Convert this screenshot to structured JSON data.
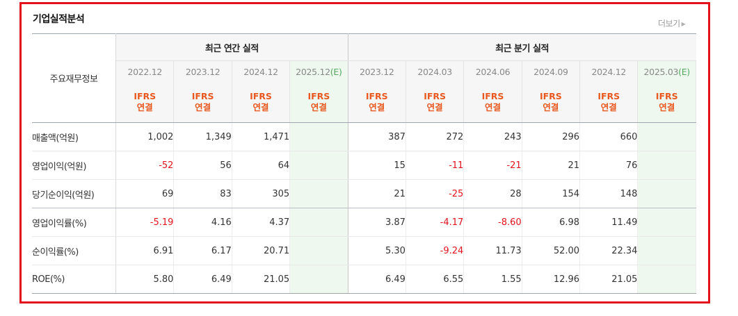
{
  "header": {
    "title": "기업실적분석",
    "more_label": "더보기"
  },
  "table": {
    "corner_label": "주요재무정보",
    "groups": [
      {
        "label": "최근 연간 실적"
      },
      {
        "label": "최근 분기 실적"
      }
    ],
    "periods": [
      {
        "label": "2022.12",
        "est": ""
      },
      {
        "label": "2023.12",
        "est": ""
      },
      {
        "label": "2024.12",
        "est": ""
      },
      {
        "label": "2025.12",
        "est": "(E)"
      },
      {
        "label": "2023.12",
        "est": ""
      },
      {
        "label": "2024.03",
        "est": ""
      },
      {
        "label": "2024.06",
        "est": ""
      },
      {
        "label": "2024.09",
        "est": ""
      },
      {
        "label": "2024.12",
        "est": ""
      },
      {
        "label": "2025.03",
        "est": "(E)"
      }
    ],
    "ifrs": {
      "line1": "IFRS",
      "line2": "연결"
    },
    "rows": [
      {
        "label": "매출액(억원)",
        "values": [
          "1,002",
          "1,349",
          "1,471",
          "",
          "387",
          "272",
          "243",
          "296",
          "660",
          ""
        ]
      },
      {
        "label": "영업이익(억원)",
        "values": [
          "-52",
          "56",
          "64",
          "",
          "15",
          "-11",
          "-21",
          "21",
          "76",
          ""
        ]
      },
      {
        "label": "당기순이익(억원)",
        "values": [
          "69",
          "83",
          "305",
          "",
          "21",
          "-25",
          "28",
          "154",
          "148",
          ""
        ]
      },
      {
        "label": "영업이익률(%)",
        "values": [
          "-5.19",
          "4.16",
          "4.37",
          "",
          "3.87",
          "-4.17",
          "-8.60",
          "6.98",
          "11.49",
          ""
        ]
      },
      {
        "label": "순이익률(%)",
        "values": [
          "6.91",
          "6.17",
          "20.71",
          "",
          "5.30",
          "-9.24",
          "11.73",
          "52.00",
          "22.34",
          ""
        ]
      },
      {
        "label": "ROE(%)",
        "values": [
          "5.80",
          "6.49",
          "21.05",
          "",
          "6.49",
          "6.55",
          "1.55",
          "12.96",
          "21.05",
          ""
        ]
      }
    ]
  },
  "colors": {
    "frame": "#e3121d",
    "negative": "#e3121d",
    "ifrs": "#e8581f",
    "estimate_bg": "#eef8ef"
  }
}
